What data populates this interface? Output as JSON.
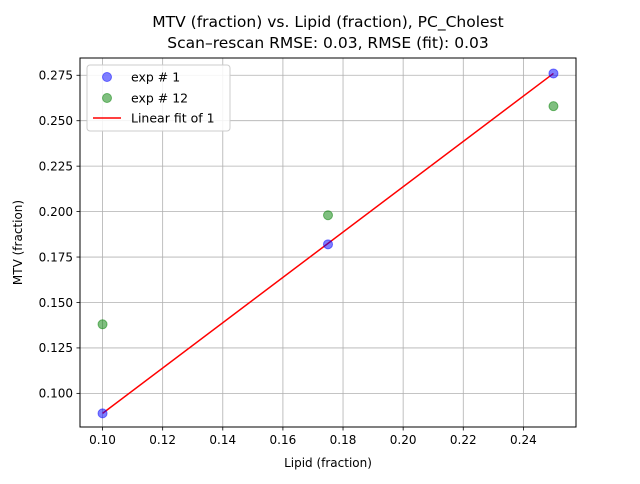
{
  "chart_data": {
    "type": "scatter",
    "title": "MTV (fraction) vs. Lipid (fraction), PC_Cholest",
    "subtitle": "Scan–rescan RMSE: 0.03, RMSE (fit): 0.03",
    "xlabel": "Lipid (fraction)",
    "ylabel": "MTV (fraction)",
    "xlim": [
      0.0925,
      0.2575
    ],
    "ylim": [
      0.0815,
      0.2845
    ],
    "x_ticks": [
      "0.10",
      "0.12",
      "0.14",
      "0.16",
      "0.18",
      "0.20",
      "0.22",
      "0.24"
    ],
    "x_tick_values": [
      0.1,
      0.12,
      0.14,
      0.16,
      0.18,
      0.2,
      0.22,
      0.24
    ],
    "y_ticks": [
      "0.100",
      "0.125",
      "0.150",
      "0.175",
      "0.200",
      "0.225",
      "0.250",
      "0.275"
    ],
    "y_tick_values": [
      0.1,
      0.125,
      0.15,
      0.175,
      0.2,
      0.225,
      0.25,
      0.275
    ],
    "grid": true,
    "legend_position": "top-left",
    "series": [
      {
        "name": "exp # 1",
        "kind": "scatter",
        "color": "#0000ff",
        "x": [
          0.1,
          0.175,
          0.25
        ],
        "y": [
          0.089,
          0.182,
          0.276
        ]
      },
      {
        "name": "exp # 12",
        "kind": "scatter",
        "color": "#008000",
        "x": [
          0.1,
          0.175,
          0.25
        ],
        "y": [
          0.138,
          0.198,
          0.258
        ]
      },
      {
        "name": "Linear fit of 1",
        "kind": "line",
        "color": "#ff0000",
        "x": [
          0.1,
          0.25
        ],
        "y": [
          0.089,
          0.276
        ]
      }
    ]
  }
}
